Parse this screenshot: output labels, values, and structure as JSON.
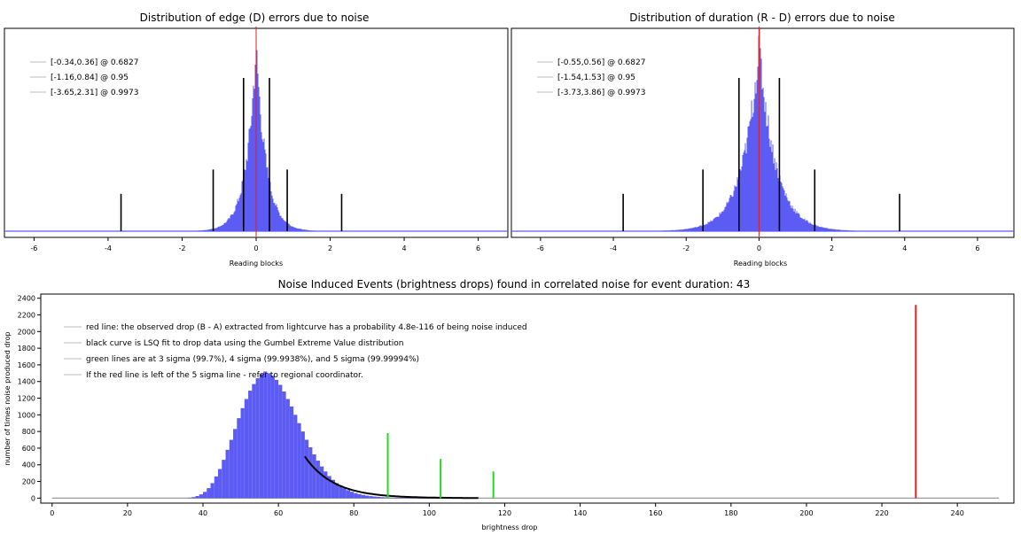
{
  "chart_data": [
    {
      "type": "histogram",
      "title": "Distribution of edge (D) errors due to noise",
      "xlabel": "Reading blocks",
      "ylabel": "",
      "xlim": [
        -6.8,
        6.8
      ],
      "xticks": [
        -6,
        -4,
        -2,
        0,
        2,
        4,
        6
      ],
      "xtick_labels": [
        "-6",
        "-4",
        "-2",
        "0",
        "2",
        "4",
        "6"
      ],
      "distribution": {
        "center": 0.0,
        "scale": 0.27,
        "peak_relative": 1.0
      },
      "red_line_x": 0,
      "black_lines": [
        {
          "x": -3.65,
          "rel_height": 0.2
        },
        {
          "x": -1.16,
          "rel_height": 0.33
        },
        {
          "x": -0.34,
          "rel_height": 0.82
        },
        {
          "x": 0.36,
          "rel_height": 0.82
        },
        {
          "x": 0.84,
          "rel_height": 0.33
        },
        {
          "x": 2.31,
          "rel_height": 0.2
        }
      ],
      "legend": [
        "[-0.34,0.36] @ 0.6827",
        "[-1.16,0.84] @ 0.95",
        "[-3.65,2.31] @ 0.9973"
      ],
      "legend_position": "top-left",
      "colors": {
        "hist": "#5c5cf5",
        "red": "#e02020",
        "black": "#000000"
      }
    },
    {
      "type": "histogram",
      "title": "Distribution of duration (R - D) errors due to noise",
      "xlabel": "Reading blocks",
      "ylabel": "",
      "xlim": [
        -6.8,
        7.0
      ],
      "xticks": [
        -6,
        -4,
        -2,
        0,
        2,
        4,
        6
      ],
      "xtick_labels": [
        "-6",
        "-4",
        "-2",
        "0",
        "2",
        "4",
        "6"
      ],
      "distribution": {
        "center": 0.0,
        "scale": 0.45,
        "peak_relative": 1.0
      },
      "red_line_x": 0,
      "black_lines": [
        {
          "x": -3.73,
          "rel_height": 0.2
        },
        {
          "x": -1.54,
          "rel_height": 0.33
        },
        {
          "x": -0.55,
          "rel_height": 0.82
        },
        {
          "x": 0.56,
          "rel_height": 0.82
        },
        {
          "x": 1.53,
          "rel_height": 0.33
        },
        {
          "x": 3.86,
          "rel_height": 0.2
        }
      ],
      "legend": [
        "[-0.55,0.56] @ 0.6827",
        "[-1.54,1.53] @ 0.95",
        "[-3.73,3.86] @ 0.9973"
      ],
      "legend_position": "top-left",
      "colors": {
        "hist": "#5c5cf5",
        "red": "#e02020",
        "black": "#000000"
      }
    },
    {
      "type": "histogram",
      "title": "Noise Induced Events (brightness drops) found in correlated noise for event duration: 43",
      "xlabel": "brightness drop",
      "ylabel": "number of times noise produced drop",
      "xlim": [
        -3,
        255
      ],
      "ylim": [
        -60,
        2450
      ],
      "xticks": [
        0,
        20,
        40,
        60,
        80,
        100,
        120,
        140,
        160,
        180,
        200,
        220,
        240
      ],
      "xtick_labels": [
        "0",
        "20",
        "40",
        "60",
        "80",
        "100",
        "120",
        "140",
        "160",
        "180",
        "200",
        "220",
        "240"
      ],
      "yticks": [
        0,
        200,
        400,
        600,
        800,
        1000,
        1200,
        1400,
        1600,
        1800,
        2000,
        2200,
        2400
      ],
      "ytick_labels": [
        "0",
        "200",
        "400",
        "600",
        "800",
        "1000",
        "1200",
        "1400",
        "1600",
        "1800",
        "2000",
        "2200",
        "2400"
      ],
      "hist_bins": [
        [
          36,
          5
        ],
        [
          37,
          12
        ],
        [
          38,
          25
        ],
        [
          39,
          45
        ],
        [
          40,
          75
        ],
        [
          41,
          120
        ],
        [
          42,
          180
        ],
        [
          43,
          260
        ],
        [
          44,
          350
        ],
        [
          45,
          460
        ],
        [
          46,
          580
        ],
        [
          47,
          700
        ],
        [
          48,
          830
        ],
        [
          49,
          960
        ],
        [
          50,
          1080
        ],
        [
          51,
          1190
        ],
        [
          52,
          1290
        ],
        [
          53,
          1370
        ],
        [
          54,
          1440
        ],
        [
          55,
          1490
        ],
        [
          56,
          1520
        ],
        [
          57,
          1500
        ],
        [
          58,
          1470
        ],
        [
          59,
          1420
        ],
        [
          60,
          1360
        ],
        [
          61,
          1280
        ],
        [
          62,
          1190
        ],
        [
          63,
          1100
        ],
        [
          64,
          1000
        ],
        [
          65,
          900
        ],
        [
          66,
          800
        ],
        [
          67,
          700
        ],
        [
          68,
          610
        ],
        [
          69,
          525
        ],
        [
          70,
          450
        ],
        [
          71,
          380
        ],
        [
          72,
          320
        ],
        [
          73,
          265
        ],
        [
          74,
          220
        ],
        [
          75,
          180
        ],
        [
          76,
          145
        ],
        [
          77,
          118
        ],
        [
          78,
          95
        ],
        [
          79,
          76
        ],
        [
          80,
          60
        ],
        [
          81,
          48
        ],
        [
          82,
          38
        ],
        [
          83,
          30
        ],
        [
          84,
          24
        ],
        [
          85,
          19
        ],
        [
          86,
          15
        ],
        [
          87,
          12
        ],
        [
          88,
          9
        ],
        [
          89,
          7
        ],
        [
          90,
          5
        ],
        [
          91,
          4
        ],
        [
          92,
          3
        ],
        [
          93,
          3
        ],
        [
          94,
          2
        ],
        [
          95,
          2
        ],
        [
          96,
          1
        ],
        [
          97,
          1
        ],
        [
          98,
          1
        ],
        [
          99,
          1
        ],
        [
          100,
          1
        ]
      ],
      "fit_curve": {
        "x_start": 67,
        "x_end": 113,
        "y_start": 500,
        "decay": 0.13
      },
      "baseline_x_end": 251,
      "green_lines": [
        {
          "x": 89,
          "y": 780
        },
        {
          "x": 103,
          "y": 470
        },
        {
          "x": 117,
          "y": 320
        }
      ],
      "red_line": {
        "x": 229,
        "y": 2320
      },
      "legend": [
        "red line: the observed drop (B - A) extracted from lightcurve has a probability 4.8e-116 of being noise induced",
        "black curve is LSQ fit to drop data using the Gumbel Extreme Value distribution",
        "green lines are at 3 sigma (99.7%), 4 sigma (99.9938%), and 5 sigma (99.99994%)",
        "If the red line is left of the 5 sigma line - refer to regional coordinator."
      ],
      "legend_position": "top-left",
      "colors": {
        "hist": "#5c5cf5",
        "red": "#e02020",
        "green": "#22dd22",
        "black": "#000000"
      }
    }
  ]
}
